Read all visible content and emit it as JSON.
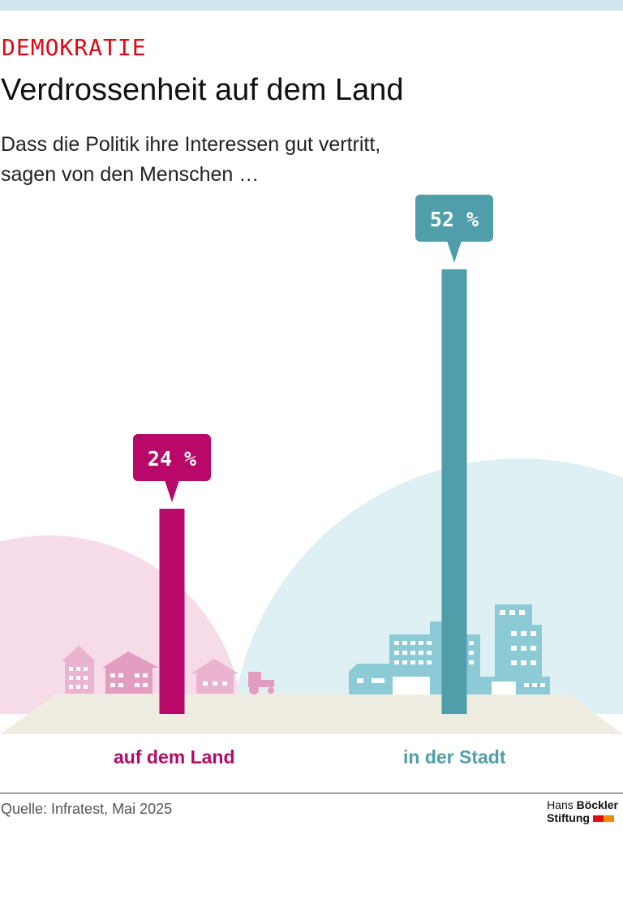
{
  "header": {
    "kicker": "DEMOKRATIE",
    "title": "Verdrossenheit auf dem Land",
    "subtitle_line1": "Dass die Politik ihre Interessen gut vertritt,",
    "subtitle_line2": "sagen von den Menschen …"
  },
  "chart_data": {
    "type": "bar",
    "categories": [
      "auf dem Land",
      "in der Stadt"
    ],
    "values": [
      24,
      52
    ],
    "value_labels": [
      "24 %",
      "52 %"
    ],
    "unit": "%",
    "colors": [
      "#b8086a",
      "#4f9ea9"
    ],
    "grid": false
  },
  "footer": {
    "source": "Quelle: Infratest, Mai 2025",
    "logo_line1_a": "Hans",
    "logo_line1_b": "Böckler",
    "logo_line2": "Stiftung"
  },
  "colors": {
    "kicker": "#e30613",
    "land": "#b8086a",
    "stadt": "#4f9ea9",
    "logo_red": "#e30613",
    "logo_orange": "#f08a00"
  }
}
